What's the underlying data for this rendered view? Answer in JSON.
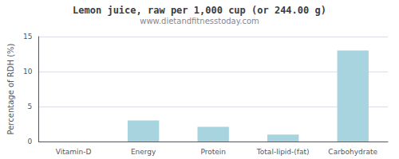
{
  "chart_data": {
    "type": "bar",
    "title": "Lemon juice, raw per 1,000 cup (or 244.00 g)",
    "subtitle": "www.dietandfitnesstoday.com",
    "ylabel": "Percentage of RDH (%)",
    "categories": [
      "Vitamin-D",
      "Energy",
      "Protein",
      "Total-lipid-(fat)",
      "Carbohydrate"
    ],
    "values": [
      0,
      3.0,
      2.1,
      1.0,
      13.0
    ],
    "color": "#a8d4e0",
    "ylim": [
      0,
      15
    ],
    "yticks": [
      0,
      5,
      10,
      15
    ],
    "grid": true
  }
}
